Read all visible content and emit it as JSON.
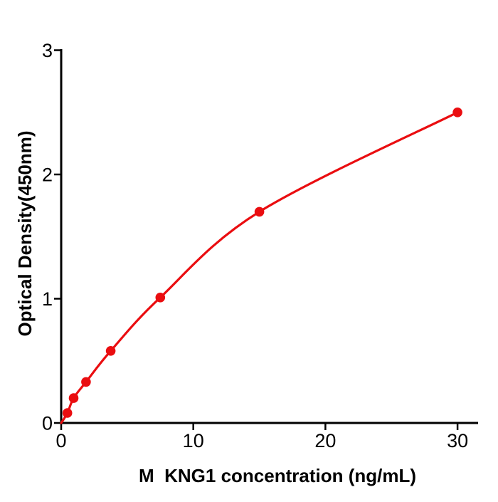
{
  "chart_data": {
    "type": "scatter",
    "title": "",
    "xlabel": "M  KNG1 concentration (ng/mL)",
    "ylabel": "Optical Density(450nm)",
    "x": [
      0.47,
      0.94,
      1.88,
      3.75,
      7.5,
      15,
      30
    ],
    "y": [
      0.08,
      0.2,
      0.33,
      0.58,
      1.01,
      1.7,
      2.5
    ],
    "xticks": [
      0,
      10,
      20,
      30
    ],
    "yticks": [
      0,
      1,
      2,
      3
    ],
    "xlim": [
      0,
      31.6
    ],
    "ylim": [
      0,
      3
    ],
    "grid": false,
    "legend_position": "none",
    "marker": "filled-circle",
    "curve": "smooth-fit-line-starting-at-origin",
    "line_color": "#ea0d10",
    "marker_color": "#ea0d10",
    "axis_color": "#000000",
    "text_color": "#000000",
    "background_color": "#ffffff"
  }
}
